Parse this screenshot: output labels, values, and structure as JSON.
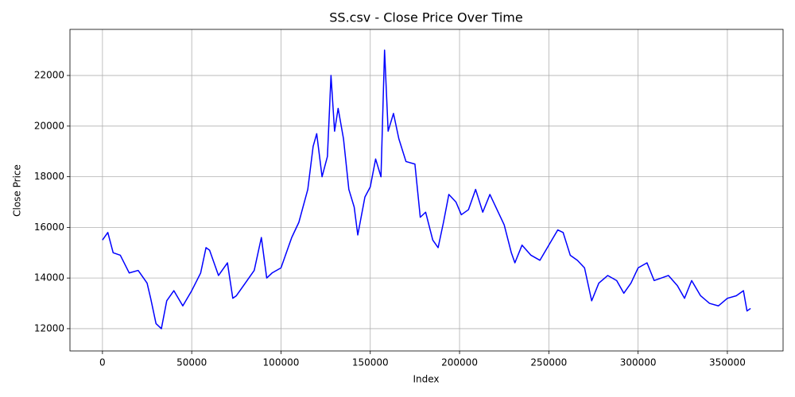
{
  "chart_data": {
    "type": "line",
    "title": "SS.csv - Close Price Over Time",
    "x_label": "Index",
    "y_label": "Close Price",
    "color": "#0000ff",
    "grid": true,
    "xlim": [
      -18200,
      381200
    ],
    "ylim": [
      11120,
      23820
    ],
    "xticks": [
      0,
      50000,
      100000,
      150000,
      200000,
      250000,
      300000,
      350000
    ],
    "yticks": [
      12000,
      14000,
      16000,
      18000,
      20000,
      22000
    ],
    "x": [
      0,
      3000,
      6000,
      10000,
      15000,
      20000,
      25000,
      27000,
      30000,
      33000,
      36000,
      40000,
      45000,
      50000,
      55000,
      58000,
      60000,
      65000,
      70000,
      73000,
      75000,
      80000,
      85000,
      89000,
      92000,
      95000,
      100000,
      103000,
      106000,
      110000,
      115000,
      118000,
      120000,
      123000,
      126000,
      128000,
      130000,
      132000,
      135000,
      138000,
      141000,
      143000,
      147000,
      150000,
      153000,
      156000,
      158000,
      160000,
      163000,
      166000,
      170000,
      175000,
      178000,
      181000,
      185000,
      188000,
      191000,
      194000,
      198000,
      201000,
      205000,
      209000,
      213000,
      217000,
      221000,
      225000,
      229000,
      231000,
      235000,
      240000,
      245000,
      250000,
      255000,
      258000,
      262000,
      266000,
      270000,
      274000,
      278000,
      283000,
      288000,
      292000,
      296000,
      300000,
      305000,
      309000,
      313000,
      317000,
      322000,
      326000,
      330000,
      335000,
      340000,
      345000,
      350000,
      355000,
      359000,
      361000,
      363000
    ],
    "values": [
      15500,
      15800,
      15000,
      14900,
      14200,
      14300,
      13800,
      13200,
      12200,
      12000,
      13100,
      13500,
      12900,
      13500,
      14200,
      15200,
      15100,
      14100,
      14600,
      13200,
      13300,
      13800,
      14300,
      15600,
      14000,
      14200,
      14400,
      15000,
      15600,
      16200,
      17500,
      19200,
      19700,
      18000,
      18800,
      22000,
      19800,
      20700,
      19500,
      17500,
      16800,
      15700,
      17200,
      17600,
      18700,
      18000,
      23000,
      19800,
      20500,
      19500,
      18600,
      18500,
      16400,
      16600,
      15500,
      15200,
      16200,
      17300,
      17000,
      16500,
      16700,
      17500,
      16600,
      17300,
      16700,
      16100,
      15000,
      14600,
      15300,
      14900,
      14700,
      15300,
      15900,
      15800,
      14900,
      14700,
      14400,
      13100,
      13800,
      14100,
      13900,
      13400,
      13800,
      14400,
      14600,
      13900,
      14000,
      14100,
      13700,
      13200,
      13900,
      13300,
      13000,
      12900,
      13200,
      13300,
      13500,
      12700,
      12800
    ]
  }
}
